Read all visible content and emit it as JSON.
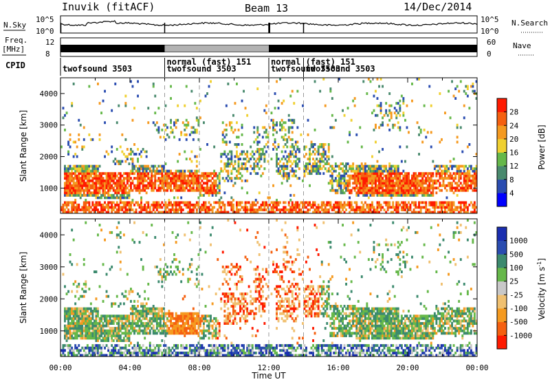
{
  "header": {
    "station": "Inuvik (fitACF)",
    "beam": "Beam 13",
    "date": "14/Dec/2014"
  },
  "aux_panels": {
    "nsky_label": "N.Sky",
    "nsky_ticks": [
      "10^5",
      "10^0"
    ],
    "nsearch_label": "N.Search",
    "freq_label_1": "Freq.",
    "freq_label_2": "[MHz]",
    "freq_ticks": [
      "12",
      "8"
    ],
    "nave_label": "Nave",
    "nave_ticks": [
      "60",
      "0"
    ],
    "cpid_label": "CPID",
    "cpid_entries": [
      {
        "text": "twofsound 3503",
        "t": 0.0,
        "row": "lower"
      },
      {
        "text": "normal (fast) 151",
        "t": 6.0,
        "row": "upper"
      },
      {
        "text": "twofsound 3503",
        "t": 6.0,
        "row": "lower"
      },
      {
        "text": "normal (fast) 151",
        "t": 12.0,
        "row": "upper"
      },
      {
        "text": "twofsound 3503",
        "t": 12.0,
        "row": "lower"
      },
      {
        "text": "twofsound 3503",
        "t": 14.0,
        "row": "lower"
      }
    ]
  },
  "chart_data": [
    {
      "type": "heatmap",
      "name": "power",
      "xlabel": "",
      "ylabel": "Slant Range [km]",
      "xlim": [
        0,
        24
      ],
      "ylim": [
        200,
        4500
      ],
      "yticks": [
        "1000",
        "2000",
        "3000",
        "4000"
      ],
      "colorbar": {
        "label": "Power [dB]",
        "ticks": [
          "28",
          "24",
          "20",
          "16",
          "12",
          "8",
          "4"
        ],
        "colors": [
          "#0000ff",
          "#2a4cb0",
          "#4a8a6e",
          "#66b84a",
          "#f0d030",
          "#f59a20",
          "#f56010",
          "#ff1a00"
        ]
      },
      "mode_change_times": [
        6.0,
        8.0,
        12.0,
        14.0
      ]
    },
    {
      "type": "heatmap",
      "name": "velocity",
      "xlabel": "Time UT",
      "ylabel": "Slant Range [km]",
      "xlim": [
        0,
        24
      ],
      "ylim": [
        200,
        4500
      ],
      "yticks": [
        "1000",
        "2000",
        "3000",
        "4000"
      ],
      "xticks": [
        "00:00",
        "04:00",
        "08:00",
        "12:00",
        "16:00",
        "20:00",
        "00:00"
      ],
      "colorbar": {
        "label": "Velocity [m s",
        "label_sup": "-1",
        "label_end": "]",
        "ticks": [
          "1000",
          "500",
          "100",
          "25",
          "-25",
          "-100",
          "-500",
          "-1000"
        ],
        "colors": [
          "#ff1a00",
          "#f56010",
          "#f59a20",
          "#f0c070",
          "#c8c8c8",
          "#66b84a",
          "#3c8a6e",
          "#2a4cb0",
          "#1a2eb0"
        ]
      },
      "mode_change_times": [
        6.0,
        8.0,
        12.0,
        14.0
      ]
    }
  ]
}
